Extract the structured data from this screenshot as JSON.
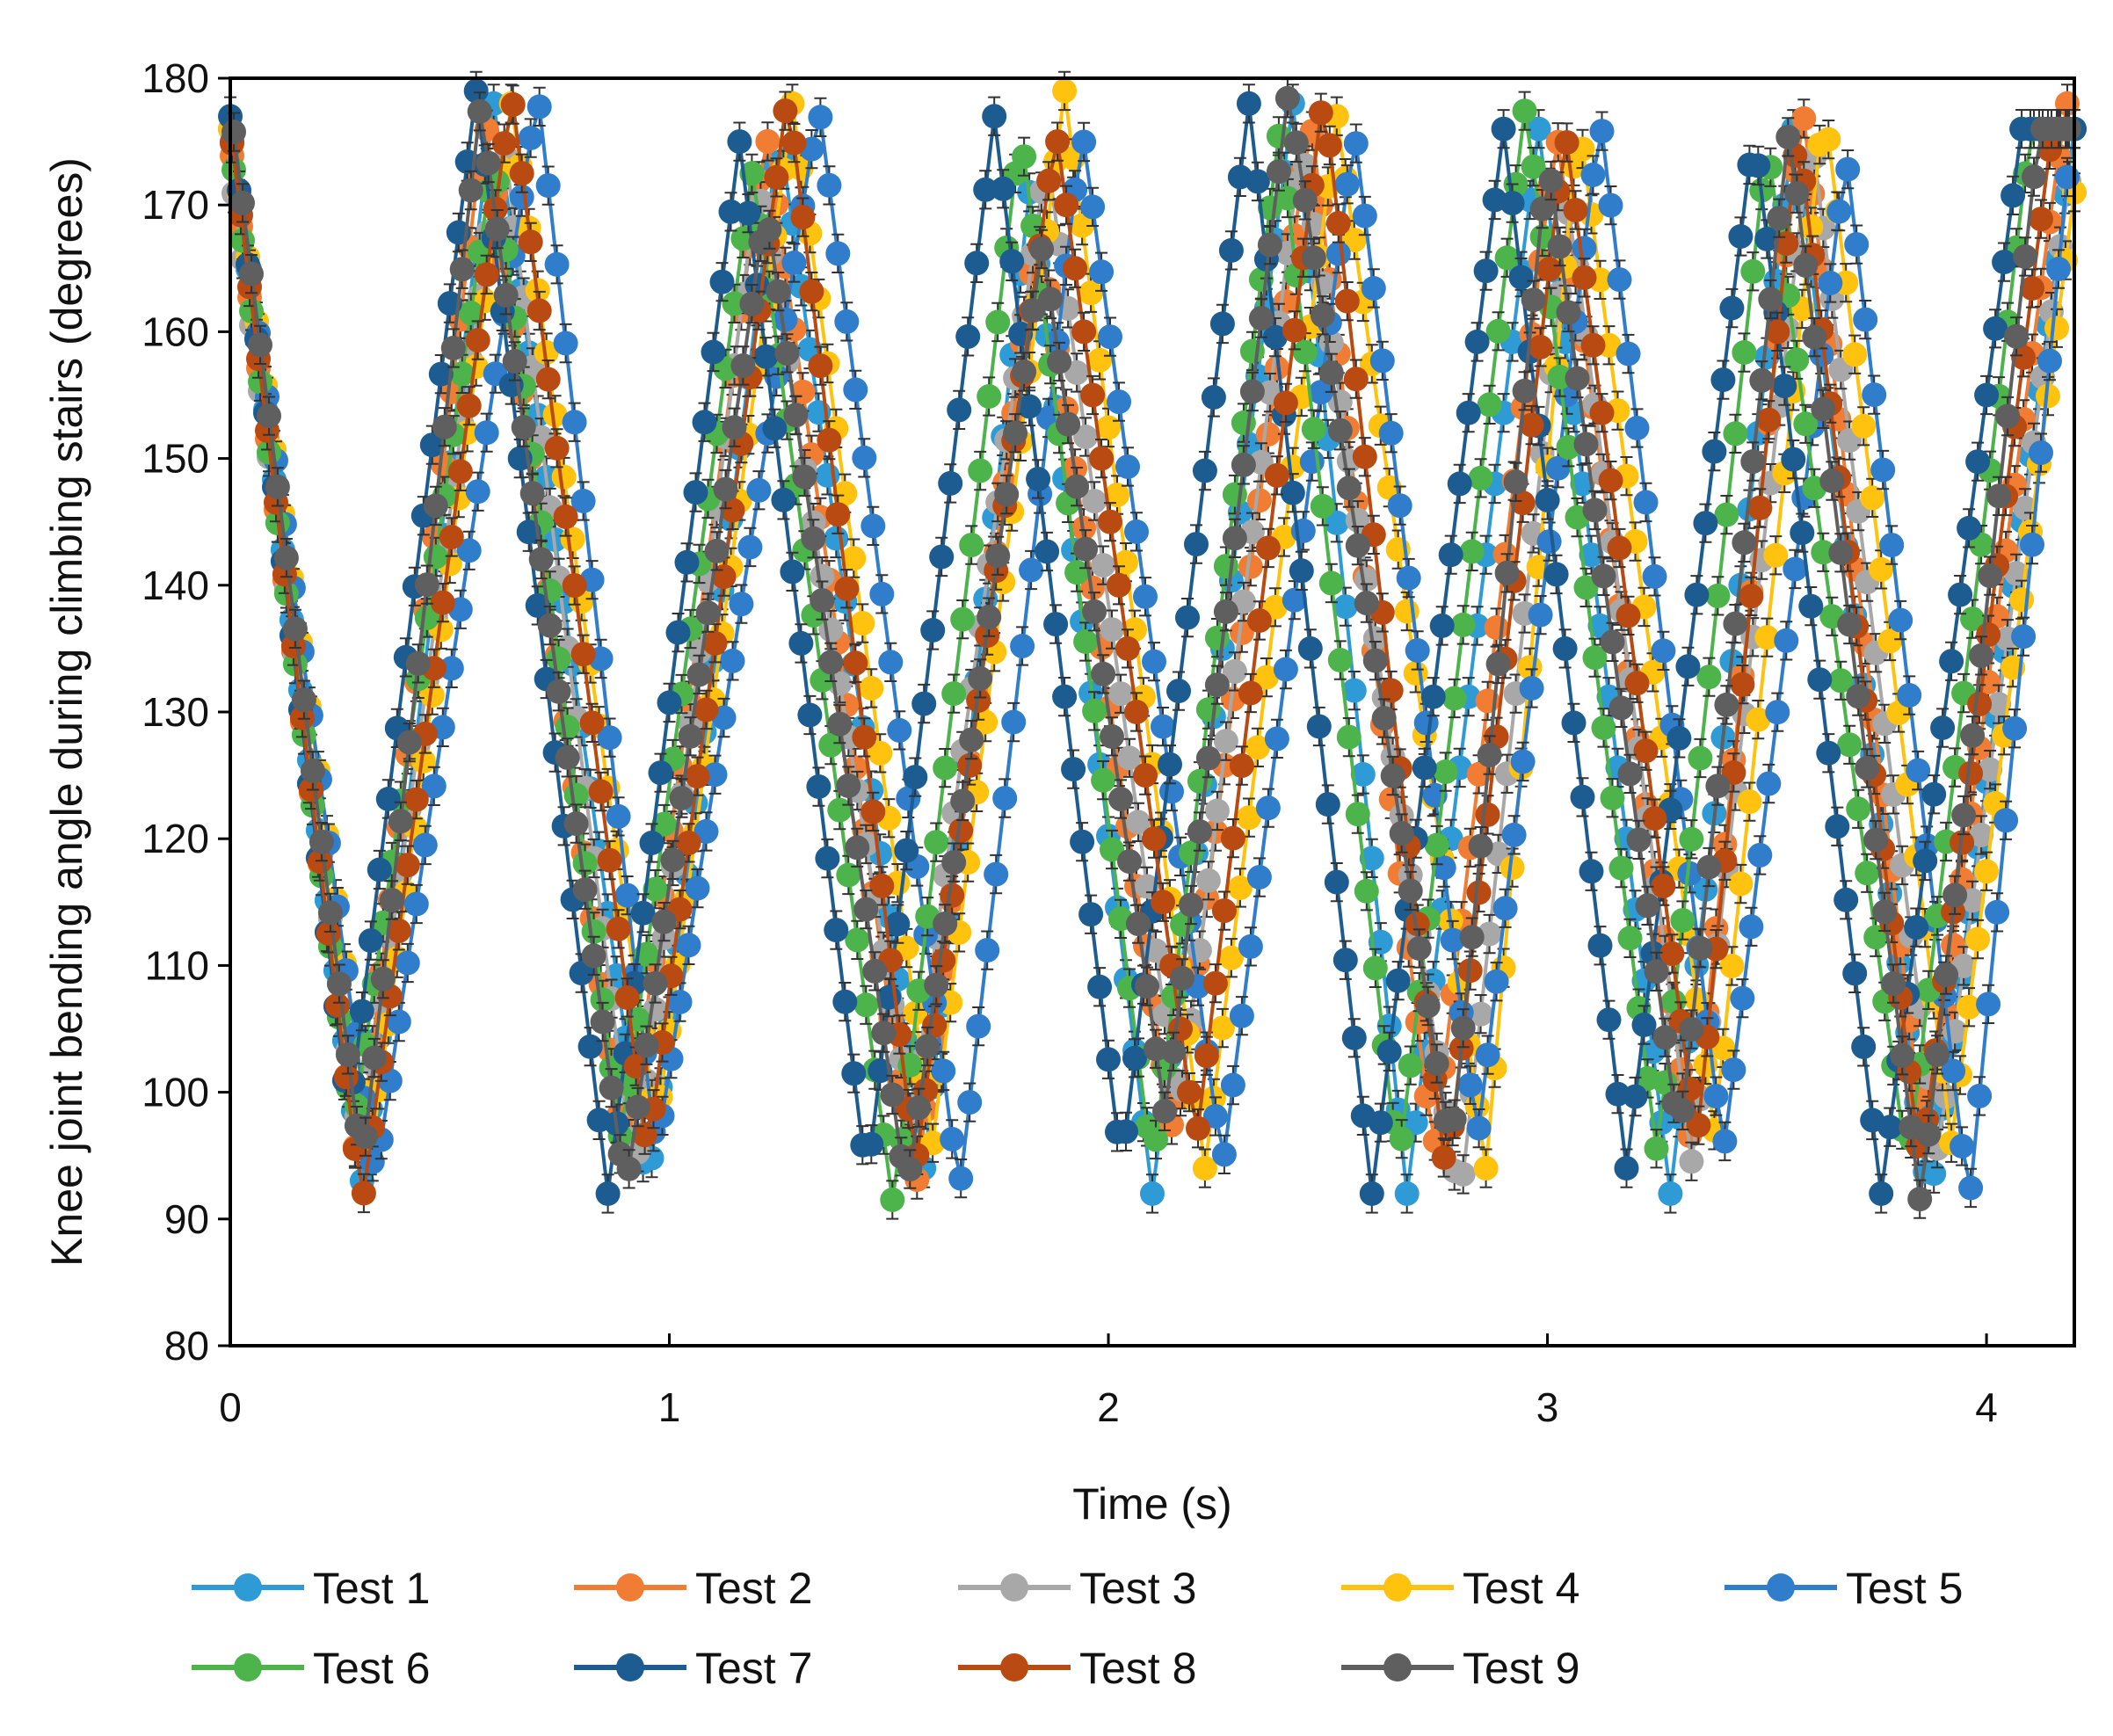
{
  "chart_data": {
    "type": "line",
    "title": "",
    "xlabel": "Time (s)",
    "ylabel": "Knee joint bending angle during climbing stairs (degrees)",
    "xlim": [
      0,
      4.2
    ],
    "ylim": [
      80,
      180
    ],
    "xticks": [
      0,
      1,
      2,
      3,
      4
    ],
    "yticks": [
      80,
      90,
      100,
      110,
      120,
      130,
      140,
      150,
      160,
      170,
      180
    ],
    "grid": false,
    "error_bars": "±1.5 degrees (approx.)",
    "legend_position": "bottom",
    "sample_step_s": 0.02,
    "series": [
      {
        "name": "Test 1",
        "color": "#2E9BD6",
        "keypoints": [
          [
            0,
            176
          ],
          [
            0.3,
            93
          ],
          [
            0.6,
            178
          ],
          [
            0.95,
            92
          ],
          [
            1.25,
            176
          ],
          [
            1.58,
            94
          ],
          [
            1.82,
            171
          ],
          [
            2.1,
            92
          ],
          [
            2.42,
            178
          ],
          [
            2.68,
            92
          ],
          [
            2.98,
            176
          ],
          [
            3.28,
            92
          ],
          [
            3.56,
            176
          ],
          [
            3.87,
            91
          ],
          [
            4.2,
            176
          ]
        ]
      },
      {
        "name": "Test 2",
        "color": "#F07D33",
        "keypoints": [
          [
            0,
            175
          ],
          [
            0.29,
            94
          ],
          [
            0.58,
            177
          ],
          [
            0.9,
            94
          ],
          [
            1.22,
            176
          ],
          [
            1.56,
            92
          ],
          [
            1.84,
            169
          ],
          [
            2.15,
            96
          ],
          [
            2.46,
            177
          ],
          [
            2.74,
            95
          ],
          [
            3.02,
            176
          ],
          [
            3.33,
            95
          ],
          [
            3.58,
            178
          ],
          [
            3.86,
            95
          ],
          [
            4.18,
            178
          ]
        ]
      },
      {
        "name": "Test 3",
        "color": "#A8A8A8",
        "keypoints": [
          [
            0,
            173
          ],
          [
            0.3,
            95
          ],
          [
            0.62,
            176
          ],
          [
            0.92,
            93
          ],
          [
            1.2,
            172
          ],
          [
            1.55,
            98
          ],
          [
            1.86,
            174
          ],
          [
            2.16,
            98
          ],
          [
            2.44,
            175
          ],
          [
            2.8,
            91
          ],
          [
            3.05,
            170
          ],
          [
            3.33,
            94
          ],
          [
            3.6,
            176
          ],
          [
            3.89,
            95
          ],
          [
            4.2,
            175
          ]
        ]
      },
      {
        "name": "Test 4",
        "color": "#FFC20E",
        "keypoints": [
          [
            0,
            176
          ],
          [
            0.32,
            95
          ],
          [
            0.64,
            178
          ],
          [
            0.97,
            97
          ],
          [
            1.28,
            178
          ],
          [
            1.6,
            96
          ],
          [
            1.9,
            179
          ],
          [
            2.22,
            94
          ],
          [
            2.52,
            177
          ],
          [
            2.86,
            94
          ],
          [
            3.07,
            177
          ],
          [
            3.38,
            97
          ],
          [
            3.63,
            178
          ],
          [
            3.92,
            96
          ],
          [
            4.2,
            171
          ]
        ]
      },
      {
        "name": "Test 5",
        "color": "#2F7DCB",
        "keypoints": [
          [
            0,
            176
          ],
          [
            0.33,
            93
          ],
          [
            0.7,
            179
          ],
          [
            0.97,
            95
          ],
          [
            1.34,
            178
          ],
          [
            1.66,
            92
          ],
          [
            1.94,
            176
          ],
          [
            2.26,
            94
          ],
          [
            2.56,
            176
          ],
          [
            2.84,
            96
          ],
          [
            3.12,
            177
          ],
          [
            3.4,
            95
          ],
          [
            3.68,
            174
          ],
          [
            3.96,
            91
          ],
          [
            4.2,
            178
          ]
        ]
      },
      {
        "name": "Test 6",
        "color": "#4CB44A",
        "keypoints": [
          [
            0,
            175
          ],
          [
            0.28,
            97
          ],
          [
            0.6,
            174
          ],
          [
            0.89,
            96
          ],
          [
            1.19,
            173
          ],
          [
            1.51,
            91
          ],
          [
            1.8,
            176
          ],
          [
            2.1,
            94
          ],
          [
            2.39,
            176
          ],
          [
            2.66,
            94
          ],
          [
            2.95,
            178
          ],
          [
            3.25,
            95
          ],
          [
            3.5,
            175
          ],
          [
            3.82,
            94
          ],
          [
            4.1,
            176
          ]
        ]
      },
      {
        "name": "Test 7",
        "color": "#1C5C91",
        "keypoints": [
          [
            0,
            177
          ],
          [
            0.27,
            98
          ],
          [
            0.56,
            179
          ],
          [
            0.86,
            92
          ],
          [
            1.16,
            175
          ],
          [
            1.45,
            93
          ],
          [
            1.74,
            177
          ],
          [
            2.03,
            94
          ],
          [
            2.32,
            178
          ],
          [
            2.6,
            92
          ],
          [
            2.9,
            176
          ],
          [
            3.18,
            94
          ],
          [
            3.47,
            176
          ],
          [
            3.76,
            92
          ],
          [
            4.08,
            176
          ]
        ]
      },
      {
        "name": "Test 8",
        "color": "#B84A12",
        "keypoints": [
          [
            0,
            176
          ],
          [
            0.3,
            91
          ],
          [
            0.64,
            179
          ],
          [
            0.95,
            95
          ],
          [
            1.27,
            179
          ],
          [
            1.56,
            94
          ],
          [
            1.88,
            176
          ],
          [
            2.2,
            96
          ],
          [
            2.49,
            179
          ],
          [
            2.77,
            93
          ],
          [
            3.04,
            176
          ],
          [
            3.34,
            96
          ],
          [
            3.57,
            176
          ],
          [
            3.85,
            94
          ],
          [
            4.15,
            176
          ]
        ]
      },
      {
        "name": "Test 9",
        "color": "#5F5F5F",
        "keypoints": [
          [
            0,
            178
          ],
          [
            0.3,
            94
          ],
          [
            0.57,
            178
          ],
          [
            0.9,
            92
          ],
          [
            1.22,
            170
          ],
          [
            1.54,
            92
          ],
          [
            1.85,
            167
          ],
          [
            2.13,
            98
          ],
          [
            2.41,
            179
          ],
          [
            2.78,
            95
          ],
          [
            3.0,
            174
          ],
          [
            3.3,
            96
          ],
          [
            3.55,
            176
          ],
          [
            3.85,
            91
          ],
          [
            4.12,
            176
          ]
        ]
      }
    ]
  }
}
